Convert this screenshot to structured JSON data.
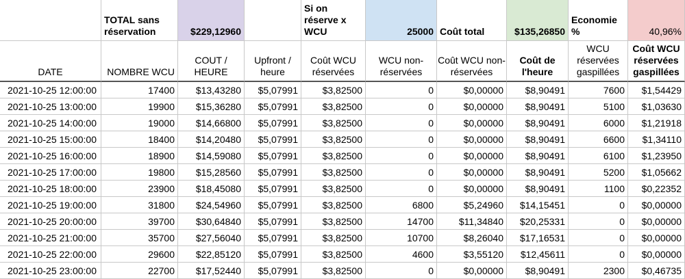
{
  "summary": {
    "total_label": "TOTAL sans réservation",
    "total_value": "$229,12960",
    "reserve_label": "Si on réserve x WCU",
    "reserve_value": "25000",
    "cost_label": "Coût total",
    "cost_value": "$135,26850",
    "economy_label": "Economie %",
    "economy_value": "40,96%",
    "colors": {
      "total": "#d9d2e9",
      "reserve": "#cfe2f3",
      "cost": "#d9ead3",
      "economy": "#f4cccc"
    }
  },
  "columns": [
    "DATE",
    "NOMBRE WCU",
    "COUT / HEURE",
    "Upfront / heure",
    "Coût WCU réservées",
    "WCU non-réservées",
    "Coût WCU non-réservées",
    "Coût de l'heure",
    "WCU réservées gaspillées",
    "Coût WCU réservées gaspillées"
  ],
  "rows": [
    [
      "2021-10-25 12:00:00",
      "17400",
      "$13,43280",
      "$5,07991",
      "$3,82500",
      "0",
      "$0,00000",
      "$8,90491",
      "7600",
      "$1,54429"
    ],
    [
      "2021-10-25 13:00:00",
      "19900",
      "$15,36280",
      "$5,07991",
      "$3,82500",
      "0",
      "$0,00000",
      "$8,90491",
      "5100",
      "$1,03630"
    ],
    [
      "2021-10-25 14:00:00",
      "19000",
      "$14,66800",
      "$5,07991",
      "$3,82500",
      "0",
      "$0,00000",
      "$8,90491",
      "6000",
      "$1,21918"
    ],
    [
      "2021-10-25 15:00:00",
      "18400",
      "$14,20480",
      "$5,07991",
      "$3,82500",
      "0",
      "$0,00000",
      "$8,90491",
      "6600",
      "$1,34110"
    ],
    [
      "2021-10-25 16:00:00",
      "18900",
      "$14,59080",
      "$5,07991",
      "$3,82500",
      "0",
      "$0,00000",
      "$8,90491",
      "6100",
      "$1,23950"
    ],
    [
      "2021-10-25 17:00:00",
      "19800",
      "$15,28560",
      "$5,07991",
      "$3,82500",
      "0",
      "$0,00000",
      "$8,90491",
      "5200",
      "$1,05662"
    ],
    [
      "2021-10-25 18:00:00",
      "23900",
      "$18,45080",
      "$5,07991",
      "$3,82500",
      "0",
      "$0,00000",
      "$8,90491",
      "1100",
      "$0,22352"
    ],
    [
      "2021-10-25 19:00:00",
      "31800",
      "$24,54960",
      "$5,07991",
      "$3,82500",
      "6800",
      "$5,24960",
      "$14,15451",
      "0",
      "$0,00000"
    ],
    [
      "2021-10-25 20:00:00",
      "39700",
      "$30,64840",
      "$5,07991",
      "$3,82500",
      "14700",
      "$11,34840",
      "$20,25331",
      "0",
      "$0,00000"
    ],
    [
      "2021-10-25 21:00:00",
      "35700",
      "$27,56040",
      "$5,07991",
      "$3,82500",
      "10700",
      "$8,26040",
      "$17,16531",
      "0",
      "$0,00000"
    ],
    [
      "2021-10-25 22:00:00",
      "29600",
      "$22,85120",
      "$5,07991",
      "$3,82500",
      "4600",
      "$3,55120",
      "$12,45611",
      "0",
      "$0,00000"
    ],
    [
      "2021-10-25 23:00:00",
      "22700",
      "$17,52440",
      "$5,07991",
      "$3,82500",
      "0",
      "$0,00000",
      "$8,90491",
      "2300",
      "$0,46735"
    ]
  ]
}
